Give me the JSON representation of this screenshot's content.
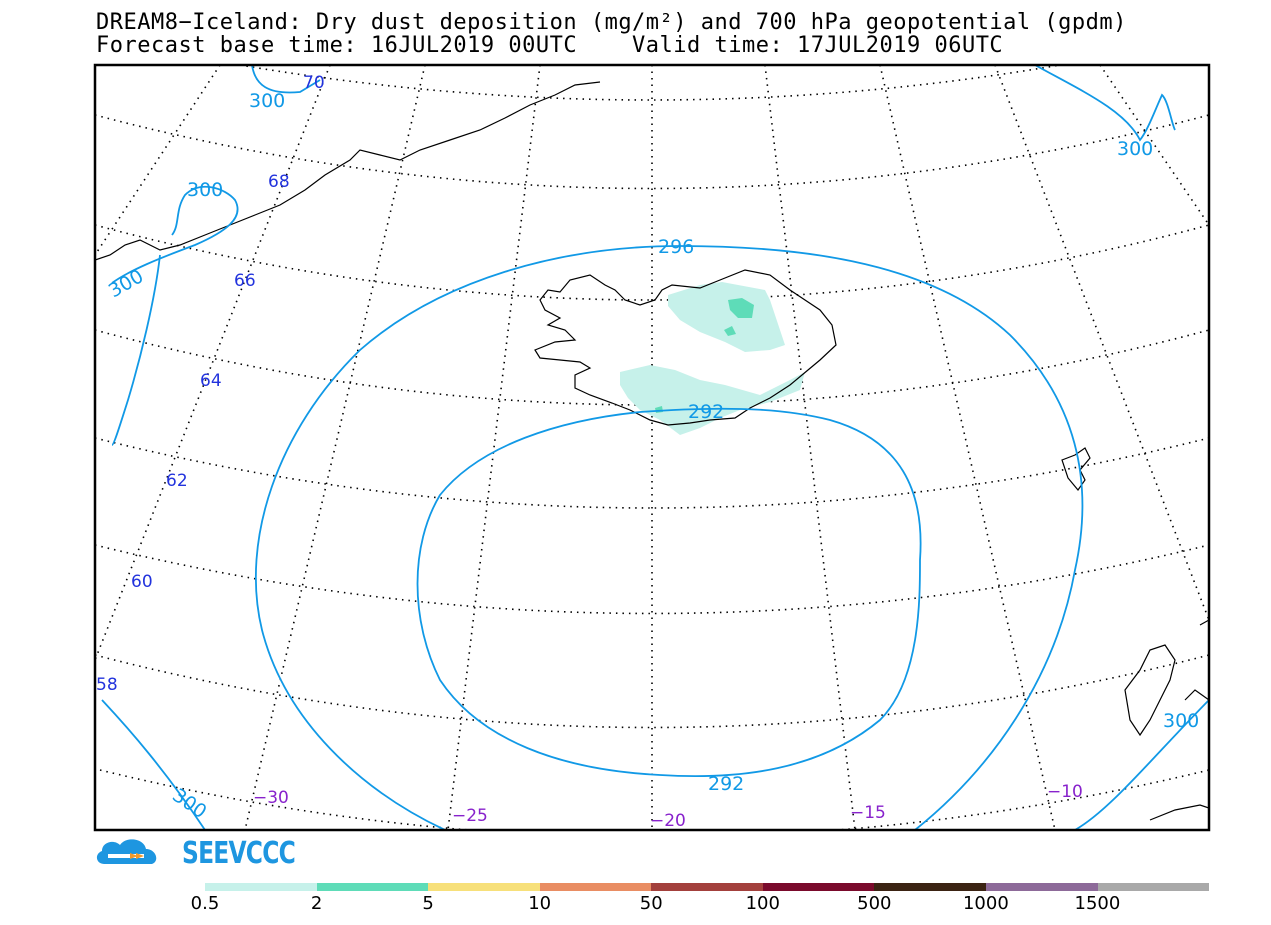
{
  "header": {
    "title_line1": "DREAM8−Iceland: Dry dust deposition (mg/m²) and 700 hPa geopotential (gpdm)",
    "title_line2": "Forecast base time: 16JUL2019 00UTC    Valid time: 17JUL2019 06UTC"
  },
  "map": {
    "lat_labels": [
      "70",
      "68",
      "66",
      "64",
      "62",
      "60",
      "58"
    ],
    "lon_labels": [
      "−30",
      "−25",
      "−20",
      "−15",
      "−10"
    ],
    "contour_labels": [
      "300",
      "300",
      "300",
      "300",
      "300",
      "300",
      "296",
      "292",
      "292"
    ],
    "contour_color": "#1199e6",
    "coastline_color": "#000000"
  },
  "logo": {
    "text": "SEEVCCC",
    "icon": "cloud-icon"
  },
  "legend": {
    "labels": [
      "0.5",
      "2",
      "5",
      "10",
      "50",
      "100",
      "500",
      "1000",
      "1500"
    ],
    "colors": [
      "#c6f1ea",
      "#5edcb8",
      "#f7e07a",
      "#e98d63",
      "#a3403c",
      "#7a0a2c",
      "#3b2313",
      "#8d6a99",
      "#a9a9a9"
    ]
  }
}
